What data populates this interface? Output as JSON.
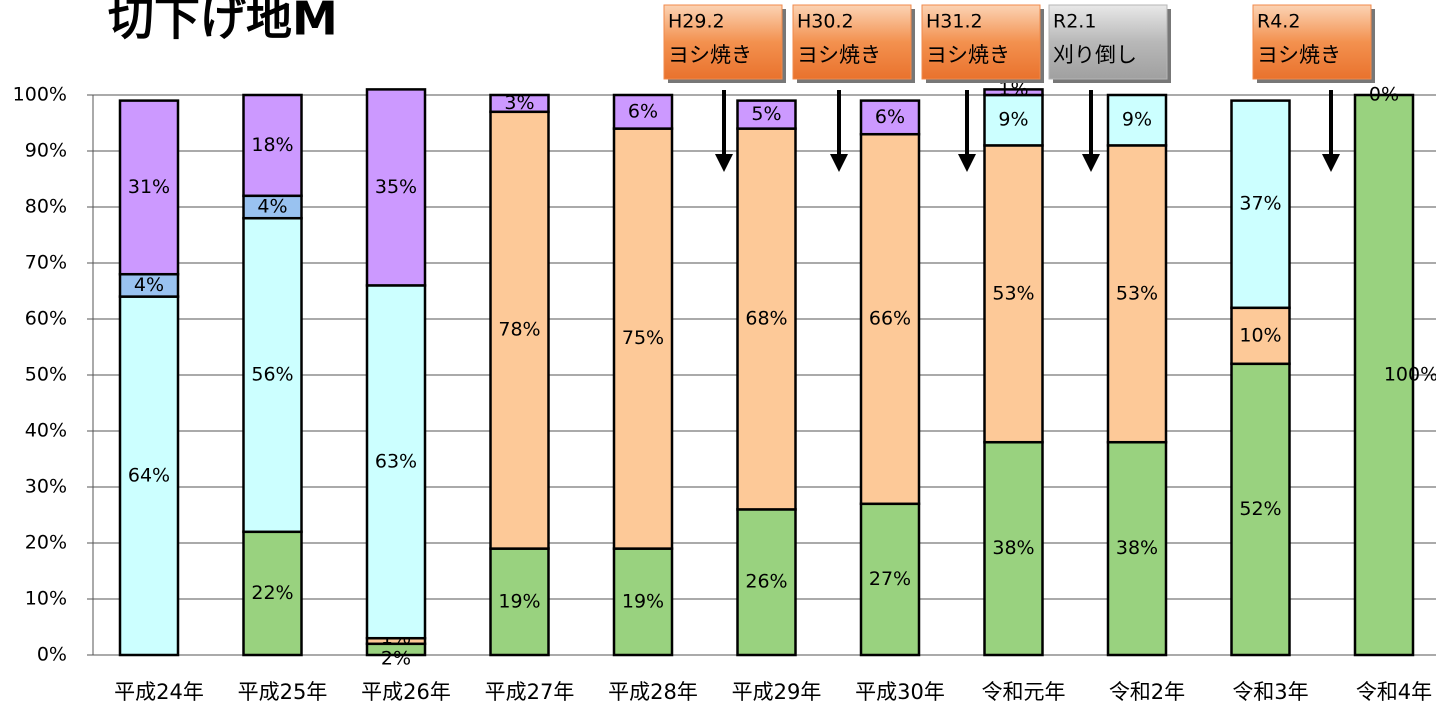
{
  "chart_data": {
    "type": "stacked_bar",
    "title": "切下げ地M",
    "categories": [
      "平成24年",
      "平成25年",
      "平成26年",
      "平成27年",
      "平成28年",
      "平成29年",
      "平成30年",
      "令和元年",
      "令和2年",
      "令和3年",
      "令和4年"
    ],
    "series": [
      {
        "color": "#99d27f",
        "values": [
          null,
          22,
          2,
          19,
          19,
          26,
          27,
          38,
          38,
          52,
          100
        ],
        "value_labels": [
          null,
          "22%",
          "2%",
          "19%",
          "19%",
          "26%",
          "27%",
          "38%",
          "38%",
          "52%",
          "100%"
        ]
      },
      {
        "color": "#fdc998",
        "values": [
          null,
          null,
          1,
          78,
          75,
          68,
          66,
          53,
          53,
          10,
          null
        ],
        "value_labels": [
          null,
          null,
          "1%",
          "78%",
          "75%",
          "68%",
          "66%",
          "53%",
          "53%",
          "10%",
          null
        ]
      },
      {
        "color": "#ccffff",
        "values": [
          64,
          56,
          63,
          null,
          null,
          null,
          null,
          9,
          9,
          37,
          null
        ],
        "value_labels": [
          "64%",
          "56%",
          "63%",
          null,
          null,
          null,
          null,
          "9%",
          "9%",
          "37%",
          null
        ]
      },
      {
        "color": "#99c2f0",
        "values": [
          4,
          4,
          null,
          null,
          null,
          null,
          null,
          null,
          null,
          null,
          null
        ],
        "value_labels": [
          "4%",
          "4%",
          null,
          null,
          null,
          null,
          null,
          null,
          null,
          null,
          null
        ]
      },
      {
        "color": "#cc99ff",
        "values": [
          31,
          18,
          35,
          3,
          6,
          5,
          6,
          1,
          null,
          null,
          0
        ],
        "value_labels": [
          "31%",
          "18%",
          "35%",
          "3%",
          "6%",
          "5%",
          "6%",
          "1%",
          null,
          null,
          "0%"
        ]
      }
    ],
    "ylim": [
      0,
      100
    ],
    "yticks": [
      {
        "value": 0,
        "label": "0%"
      },
      {
        "value": 10,
        "label": "10%"
      },
      {
        "value": 20,
        "label": "20%"
      },
      {
        "value": 30,
        "label": "30%"
      },
      {
        "value": 40,
        "label": "40%"
      },
      {
        "value": 50,
        "label": "50%"
      },
      {
        "value": 60,
        "label": "60%"
      },
      {
        "value": 70,
        "label": "70%"
      },
      {
        "value": 80,
        "label": "80%"
      },
      {
        "value": 90,
        "label": "90%"
      },
      {
        "value": 100,
        "label": "100%"
      }
    ],
    "grid": true,
    "annotations": [
      {
        "date": "H29.2",
        "text": "ヨシ焼き",
        "color": "#f08a4b"
      },
      {
        "date": "H30.2",
        "text": "ヨシ焼き",
        "color": "#f08a4b"
      },
      {
        "date": "H31.2",
        "text": "ヨシ焼き",
        "color": "#f08a4b"
      },
      {
        "date": "R2.1",
        "text": "刈り倒し",
        "color": "#b5b5b5"
      },
      {
        "date": "R4.2",
        "text": "ヨシ焼き",
        "color": "#f08a4b"
      }
    ]
  }
}
